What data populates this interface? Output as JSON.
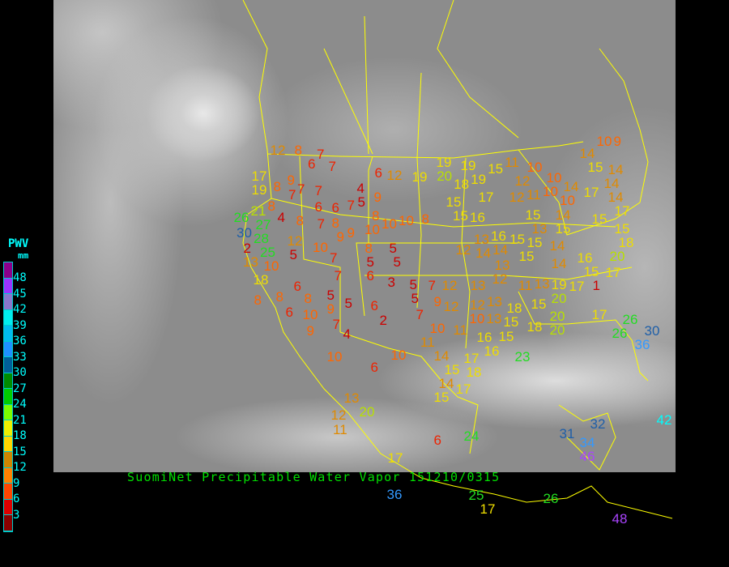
{
  "title": "SuomiNet Precipitable Water Vapor 151210/0315",
  "legend": {
    "title": "PWV",
    "unit": "mm",
    "labels": [
      "48",
      "45",
      "42",
      "39",
      "36",
      "33",
      "30",
      "27",
      "24",
      "21",
      "18",
      "15",
      "12",
      "9",
      "6",
      "3"
    ],
    "colors": [
      "#8b008b",
      "#9933ff",
      "#8877cc",
      "#00eeee",
      "#00bbee",
      "#1e90ff",
      "#005f99",
      "#008b00",
      "#00cd00",
      "#7cfc00",
      "#eeee00",
      "#ffd700",
      "#cd8500",
      "#ff8000",
      "#ff4500",
      "#dd0000",
      "#8b0000"
    ]
  },
  "boundary_color": "#ffff00",
  "stations": [
    "12",
    "8",
    "7",
    "6",
    "7",
    "6",
    "12",
    "19",
    "19",
    "20",
    "19",
    "18",
    "19",
    "15",
    "11",
    "10",
    "14",
    "10",
    "9",
    "15",
    "14",
    "17",
    "19",
    "8",
    "9",
    "7",
    "7",
    "7",
    "6",
    "6",
    "7",
    "4",
    "5",
    "9",
    "8",
    "4",
    "8",
    "7",
    "8",
    "9",
    "9",
    "26",
    "21",
    "30",
    "27",
    "28",
    "2",
    "25",
    "13",
    "10",
    "12",
    "5",
    "10",
    "7",
    "8",
    "10",
    "10",
    "10",
    "8",
    "5",
    "8",
    "5",
    "5",
    "7",
    "6",
    "3",
    "5",
    "7",
    "12",
    "13",
    "12",
    "18",
    "8",
    "8",
    "6",
    "8",
    "5",
    "5",
    "6",
    "6",
    "10",
    "9",
    "7",
    "4",
    "9",
    "2",
    "5",
    "7",
    "9",
    "12",
    "12",
    "13",
    "10",
    "13",
    "15",
    "18",
    "10",
    "11",
    "11",
    "16",
    "16",
    "15",
    "18",
    "20",
    "14",
    "15",
    "17",
    "18",
    "14",
    "17",
    "15",
    "10",
    "10",
    "6",
    "13",
    "20",
    "12",
    "11",
    "6",
    "24",
    "23",
    "26",
    "26",
    "30",
    "36",
    "31",
    "32",
    "34",
    "42",
    "36",
    "17",
    "25",
    "17",
    "26",
    "46",
    "48",
    "15",
    "16",
    "15",
    "17",
    "12",
    "11",
    "12",
    "10",
    "10",
    "10",
    "14",
    "17",
    "14",
    "14",
    "17",
    "15",
    "15",
    "18",
    "20",
    "15",
    "13",
    "14",
    "15",
    "16",
    "15",
    "13",
    "12",
    "14",
    "14",
    "15",
    "14",
    "16",
    "15",
    "17",
    "13",
    "15",
    "14",
    "11",
    "13",
    "19",
    "17",
    "1",
    "15",
    "20",
    "17",
    "20"
  ]
}
